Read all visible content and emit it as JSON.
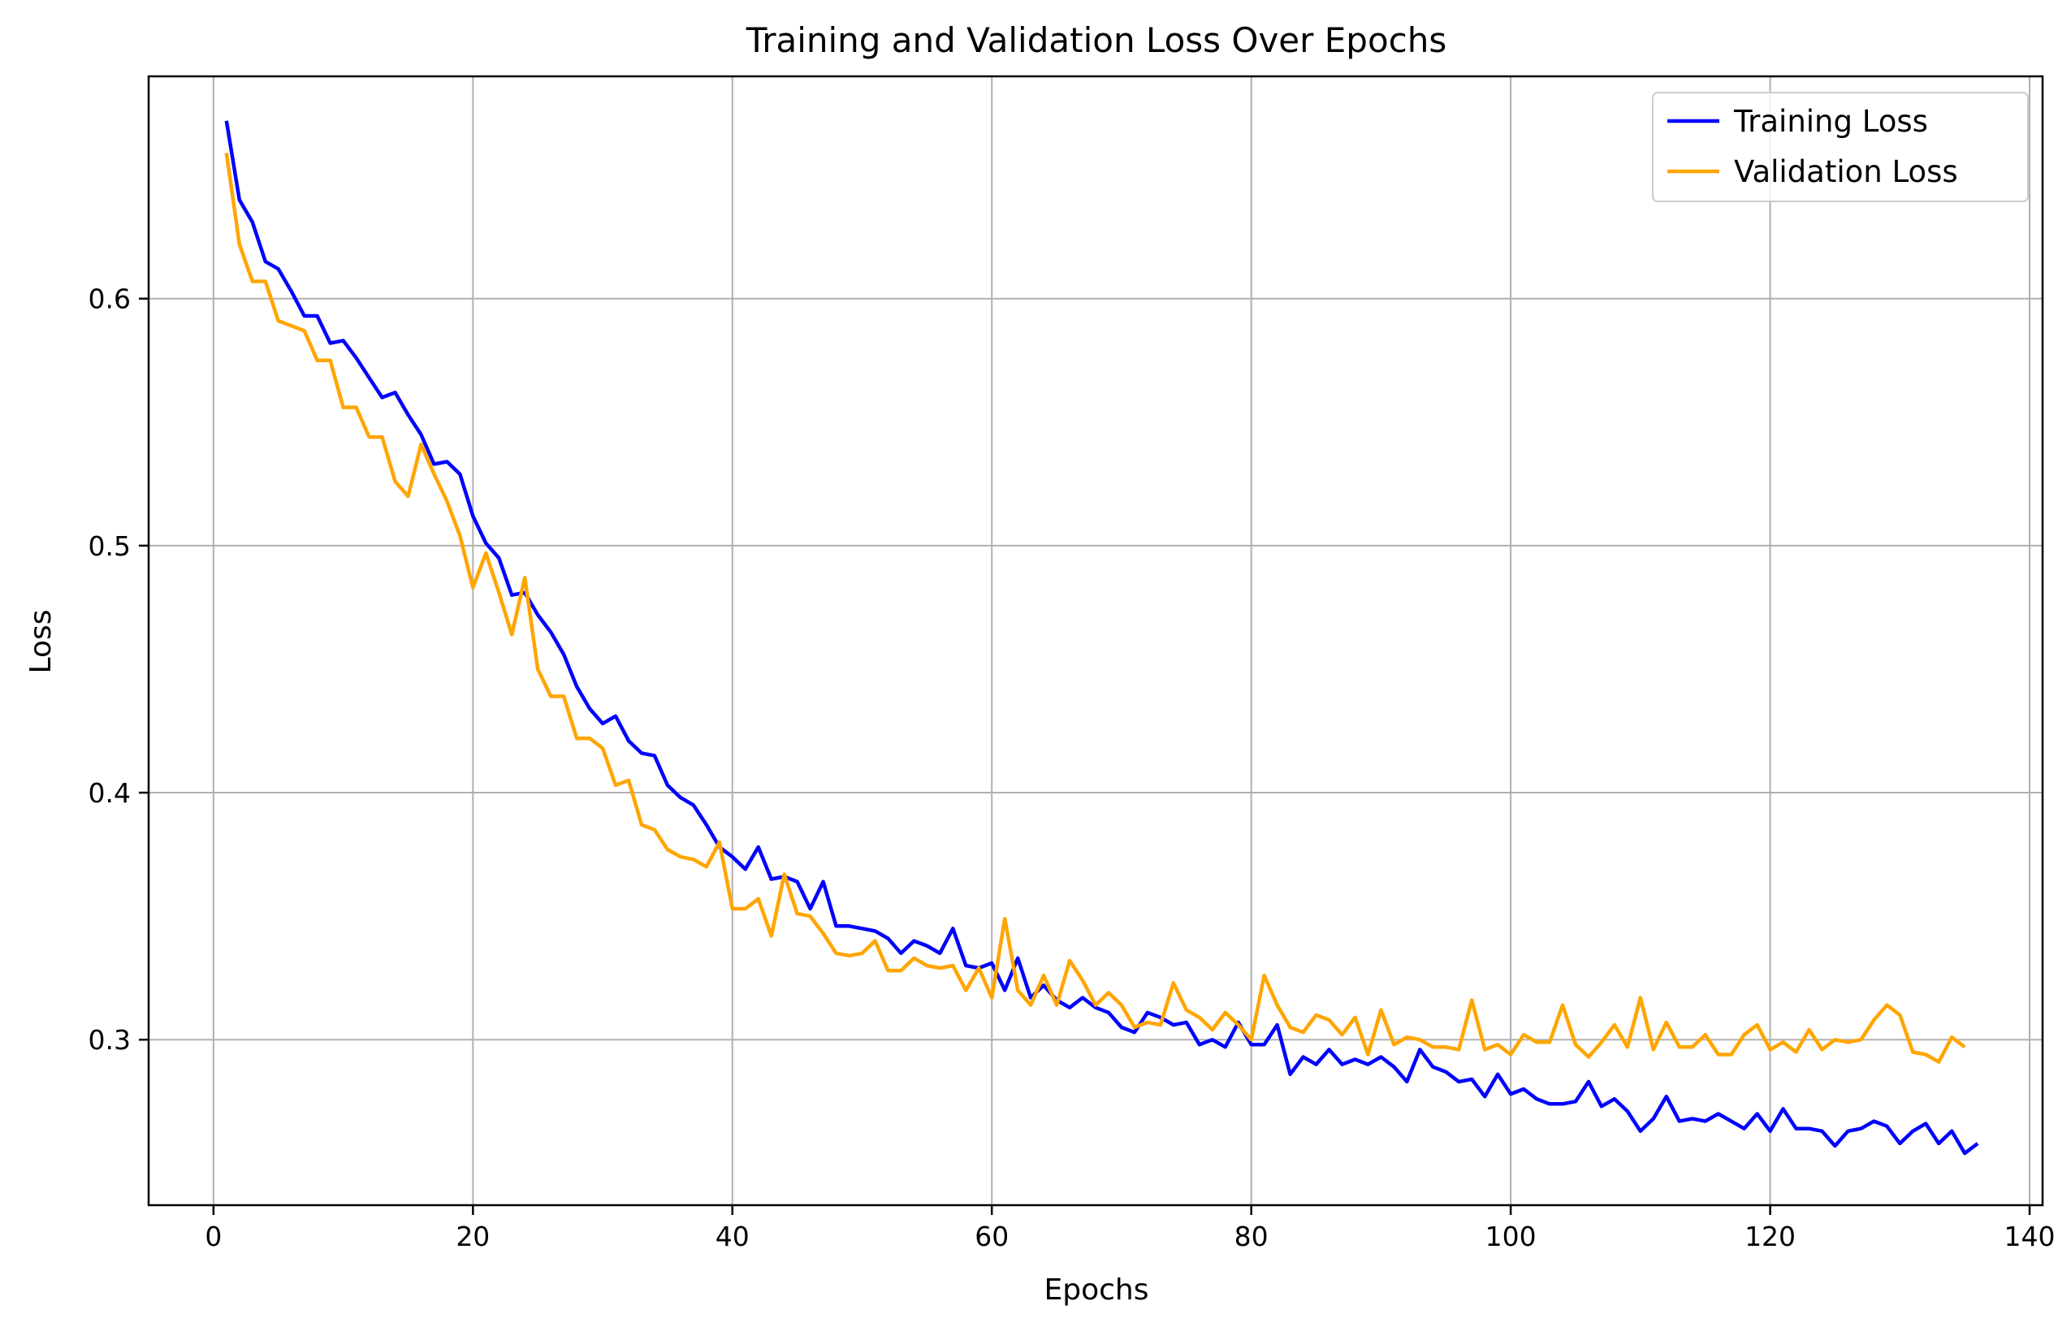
{
  "chart_data": {
    "type": "line",
    "title": "Training and Validation Loss Over Epochs",
    "xlabel": "Epochs",
    "ylabel": "Loss",
    "xlim": [
      -5,
      141
    ],
    "ylim": [
      0.233,
      0.69
    ],
    "xticks": [
      0,
      20,
      40,
      60,
      80,
      100,
      120,
      140
    ],
    "yticks": [
      0.3,
      0.4,
      0.5,
      0.6
    ],
    "ytick_labels": [
      "0.3",
      "0.4",
      "0.5",
      "0.6"
    ],
    "grid": true,
    "legend_position": "top-right",
    "series": [
      {
        "name": "Training Loss",
        "color": "#0000ff",
        "x_start": 1,
        "values": [
          0.672,
          0.64,
          0.631,
          0.615,
          0.612,
          0.603,
          0.593,
          0.593,
          0.582,
          0.583,
          0.576,
          0.568,
          0.56,
          0.562,
          0.553,
          0.545,
          0.533,
          0.534,
          0.529,
          0.512,
          0.501,
          0.495,
          0.48,
          0.481,
          0.472,
          0.465,
          0.456,
          0.443,
          0.434,
          0.428,
          0.431,
          0.421,
          0.416,
          0.415,
          0.403,
          0.398,
          0.395,
          0.387,
          0.378,
          0.374,
          0.369,
          0.378,
          0.365,
          0.366,
          0.364,
          0.353,
          0.364,
          0.346,
          0.346,
          0.345,
          0.344,
          0.341,
          0.335,
          0.34,
          0.338,
          0.335,
          0.345,
          0.33,
          0.329,
          0.331,
          0.32,
          0.333,
          0.317,
          0.322,
          0.316,
          0.313,
          0.317,
          0.313,
          0.311,
          0.305,
          0.303,
          0.311,
          0.309,
          0.306,
          0.307,
          0.298,
          0.3,
          0.297,
          0.307,
          0.298,
          0.298,
          0.306,
          0.286,
          0.293,
          0.29,
          0.296,
          0.29,
          0.292,
          0.29,
          0.293,
          0.289,
          0.283,
          0.296,
          0.289,
          0.287,
          0.283,
          0.284,
          0.277,
          0.286,
          0.278,
          0.28,
          0.276,
          0.274,
          0.274,
          0.275,
          0.283,
          0.273,
          0.276,
          0.271,
          0.263,
          0.268,
          0.277,
          0.267,
          0.268,
          0.267,
          0.27,
          0.267,
          0.264,
          0.27,
          0.263,
          0.272,
          0.264,
          0.264,
          0.263,
          0.257,
          0.263,
          0.264,
          0.267,
          0.265,
          0.258,
          0.263,
          0.266,
          0.258,
          0.263,
          0.254,
          0.258
        ]
      },
      {
        "name": "Validation Loss",
        "color": "#ffa500",
        "x_start": 1,
        "values": [
          0.659,
          0.622,
          0.607,
          0.607,
          0.591,
          0.589,
          0.587,
          0.575,
          0.575,
          0.556,
          0.556,
          0.544,
          0.544,
          0.526,
          0.52,
          0.541,
          0.529,
          0.518,
          0.504,
          0.483,
          0.497,
          0.481,
          0.464,
          0.487,
          0.45,
          0.439,
          0.439,
          0.422,
          0.422,
          0.418,
          0.403,
          0.405,
          0.387,
          0.385,
          0.377,
          0.374,
          0.373,
          0.37,
          0.38,
          0.353,
          0.353,
          0.357,
          0.342,
          0.367,
          0.351,
          0.35,
          0.343,
          0.335,
          0.334,
          0.335,
          0.34,
          0.328,
          0.328,
          0.333,
          0.33,
          0.329,
          0.33,
          0.32,
          0.329,
          0.317,
          0.349,
          0.32,
          0.314,
          0.326,
          0.314,
          0.332,
          0.324,
          0.314,
          0.319,
          0.314,
          0.305,
          0.307,
          0.306,
          0.323,
          0.312,
          0.309,
          0.304,
          0.311,
          0.306,
          0.3,
          0.326,
          0.314,
          0.305,
          0.303,
          0.31,
          0.308,
          0.302,
          0.309,
          0.294,
          0.312,
          0.298,
          0.301,
          0.3,
          0.297,
          0.297,
          0.296,
          0.316,
          0.296,
          0.298,
          0.294,
          0.302,
          0.299,
          0.299,
          0.314,
          0.298,
          0.293,
          0.299,
          0.306,
          0.297,
          0.317,
          0.296,
          0.307,
          0.297,
          0.297,
          0.302,
          0.294,
          0.294,
          0.302,
          0.306,
          0.296,
          0.299,
          0.295,
          0.304,
          0.296,
          0.3,
          0.299,
          0.3,
          0.308,
          0.314,
          0.31,
          0.295,
          0.294,
          0.291,
          0.301,
          0.297
        ]
      }
    ]
  }
}
